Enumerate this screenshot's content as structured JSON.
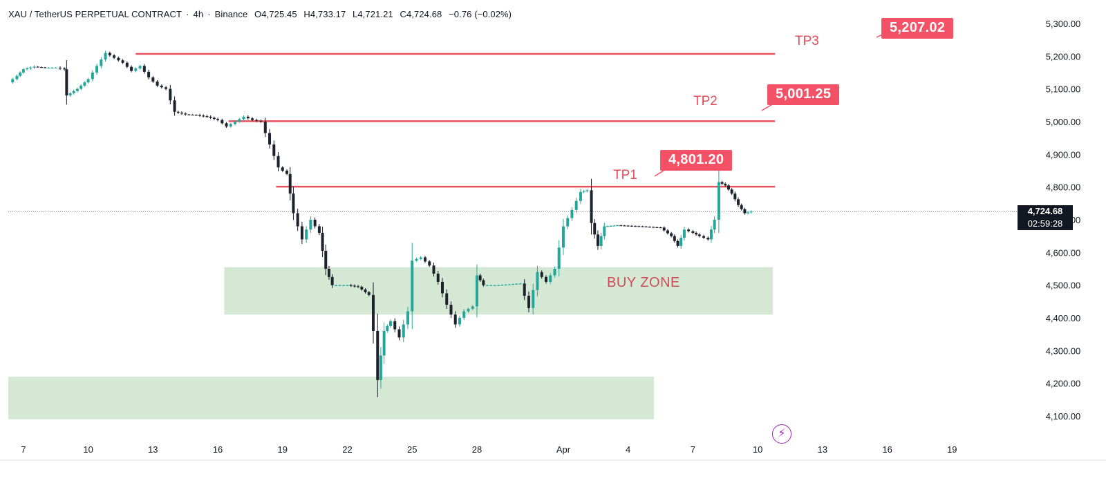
{
  "header": {
    "symbol": "XAU / TetherUS PERPETUAL CONTRACT",
    "separator1": "·",
    "interval": "4h",
    "separator2": "·",
    "exchange": "Binance",
    "open": "O4,725.45",
    "high": "H4,733.17",
    "low": "L4,721.21",
    "close": "C4,724.68",
    "change": "−0.76 (−0.02%)"
  },
  "annotations": {
    "tp1_label": "TP1",
    "tp2_label": "TP2",
    "tp3_label": "TP3",
    "tp1_value": "4,801.20",
    "tp2_value": "5,001.25",
    "tp3_value": "5,207.02",
    "buy_zone_label": "BUY ZONE",
    "colors": {
      "target_line": "#e8505e",
      "label_bg": "#f25166",
      "zone": "#cfe6cf"
    }
  },
  "price_tag": {
    "price": "4,724.68",
    "countdown": "02:59:28"
  },
  "chart_data": {
    "type": "candlestick",
    "title": "",
    "y_ticks": [
      "5,300.00",
      "5,200.00",
      "5,100.00",
      "5,000.00",
      "4,900.00",
      "4,800.00",
      "4,700.00",
      "4,600.00",
      "4,500.00",
      "4,400.00",
      "4,300.00",
      "4,200.00",
      "4,100.00"
    ],
    "y_tick_values": [
      5300,
      5200,
      5100,
      5000,
      4900,
      4800,
      4700,
      4600,
      4500,
      4400,
      4300,
      4200,
      4100
    ],
    "ylim": [
      4020,
      5350
    ],
    "x_ticks": [
      "7",
      "10",
      "13",
      "16",
      "19",
      "22",
      "25",
      "28",
      "Apr",
      "4",
      "7",
      "10",
      "13",
      "16",
      "19"
    ],
    "x_tick_days": [
      7,
      10,
      13,
      16,
      19,
      22,
      25,
      28,
      32,
      35,
      38,
      41,
      44,
      47,
      50
    ],
    "x_range_days": [
      6.3,
      51
    ],
    "targets": [
      {
        "name": "TP1",
        "price": 4801.2,
        "day_start": 18.7,
        "day_end": 41.8
      },
      {
        "name": "TP2",
        "price": 5001.25,
        "day_start": 16.5,
        "day_end": 41.8
      },
      {
        "name": "TP3",
        "price": 5207.02,
        "day_start": 12.2,
        "day_end": 41.8
      }
    ],
    "zones": [
      {
        "name": "BUY ZONE",
        "top": 4555,
        "bottom": 4410,
        "day_start": 16.3,
        "day_end": 41.7
      },
      {
        "name": "",
        "top": 4220,
        "bottom": 4090,
        "day_start": 6.3,
        "day_end": 36.2
      }
    ],
    "last_price": 4724.68,
    "series": [
      {
        "day": 6.3,
        "close": 5120
      },
      {
        "day": 6.7,
        "close": 5140
      },
      {
        "day": 7.0,
        "close": 5160
      },
      {
        "day": 7.5,
        "close": 5168
      },
      {
        "day": 8.0,
        "close": 5165
      },
      {
        "day": 8.5,
        "close": 5165
      },
      {
        "day": 8.9,
        "close": 5160
      },
      {
        "day": 9.0,
        "close": 5080
      },
      {
        "day": 9.5,
        "close": 5100
      },
      {
        "day": 10.0,
        "close": 5130
      },
      {
        "day": 10.4,
        "close": 5170
      },
      {
        "day": 10.8,
        "close": 5210
      },
      {
        "day": 11.2,
        "close": 5195
      },
      {
        "day": 11.6,
        "close": 5180
      },
      {
        "day": 12.0,
        "close": 5155
      },
      {
        "day": 12.4,
        "close": 5170
      },
      {
        "day": 12.8,
        "close": 5135
      },
      {
        "day": 13.2,
        "close": 5110
      },
      {
        "day": 13.6,
        "close": 5100
      },
      {
        "day": 14.0,
        "close": 5030
      },
      {
        "day": 14.5,
        "close": 5022
      },
      {
        "day": 15.0,
        "close": 5020
      },
      {
        "day": 15.5,
        "close": 5015
      },
      {
        "day": 16.0,
        "close": 5005
      },
      {
        "day": 16.4,
        "close": 4985
      },
      {
        "day": 16.8,
        "close": 5000
      },
      {
        "day": 17.2,
        "close": 5015
      },
      {
        "day": 17.6,
        "close": 5005
      },
      {
        "day": 18.0,
        "close": 5000
      },
      {
        "day": 18.4,
        "close": 4930
      },
      {
        "day": 18.8,
        "close": 4860
      },
      {
        "day": 19.2,
        "close": 4840
      },
      {
        "day": 19.5,
        "close": 4720
      },
      {
        "day": 19.9,
        "close": 4640
      },
      {
        "day": 20.3,
        "close": 4700
      },
      {
        "day": 20.7,
        "close": 4660
      },
      {
        "day": 21.0,
        "close": 4550
      },
      {
        "day": 21.3,
        "close": 4500
      },
      {
        "day": 22.0,
        "close": 4500
      },
      {
        "day": 22.5,
        "close": 4495
      },
      {
        "day": 23.0,
        "close": 4470
      },
      {
        "day": 23.2,
        "close": 4360
      },
      {
        "day": 23.4,
        "close": 4210
      },
      {
        "day": 23.7,
        "close": 4360
      },
      {
        "day": 24.0,
        "close": 4390
      },
      {
        "day": 24.4,
        "close": 4340
      },
      {
        "day": 24.8,
        "close": 4420
      },
      {
        "day": 25.0,
        "close": 4575
      },
      {
        "day": 25.4,
        "close": 4585
      },
      {
        "day": 25.8,
        "close": 4560
      },
      {
        "day": 26.2,
        "close": 4510
      },
      {
        "day": 26.6,
        "close": 4440
      },
      {
        "day": 27.0,
        "close": 4380
      },
      {
        "day": 27.4,
        "close": 4420
      },
      {
        "day": 27.8,
        "close": 4435
      },
      {
        "day": 28.0,
        "close": 4530
      },
      {
        "day": 28.3,
        "close": 4500
      },
      {
        "day": 29.0,
        "close": 4500
      },
      {
        "day": 30.0,
        "close": 4505
      },
      {
        "day": 30.4,
        "close": 4430
      },
      {
        "day": 30.8,
        "close": 4540
      },
      {
        "day": 31.2,
        "close": 4510
      },
      {
        "day": 31.6,
        "close": 4550
      },
      {
        "day": 32.0,
        "close": 4680
      },
      {
        "day": 32.4,
        "close": 4730
      },
      {
        "day": 32.8,
        "close": 4785
      },
      {
        "day": 33.1,
        "close": 4790
      },
      {
        "day": 33.3,
        "close": 4690
      },
      {
        "day": 33.6,
        "close": 4620
      },
      {
        "day": 33.9,
        "close": 4680
      },
      {
        "day": 34.5,
        "close": 4683
      },
      {
        "day": 35.5,
        "close": 4680
      },
      {
        "day": 36.5,
        "close": 4676
      },
      {
        "day": 37.0,
        "close": 4650
      },
      {
        "day": 37.3,
        "close": 4620
      },
      {
        "day": 37.6,
        "close": 4670
      },
      {
        "day": 38.0,
        "close": 4660
      },
      {
        "day": 38.3,
        "close": 4650
      },
      {
        "day": 38.7,
        "close": 4640
      },
      {
        "day": 39.0,
        "close": 4700
      },
      {
        "day": 39.2,
        "close": 4815
      },
      {
        "day": 39.5,
        "close": 4805
      },
      {
        "day": 39.8,
        "close": 4780
      },
      {
        "day": 40.1,
        "close": 4745
      },
      {
        "day": 40.4,
        "close": 4720
      },
      {
        "day": 40.7,
        "close": 4725
      }
    ]
  }
}
